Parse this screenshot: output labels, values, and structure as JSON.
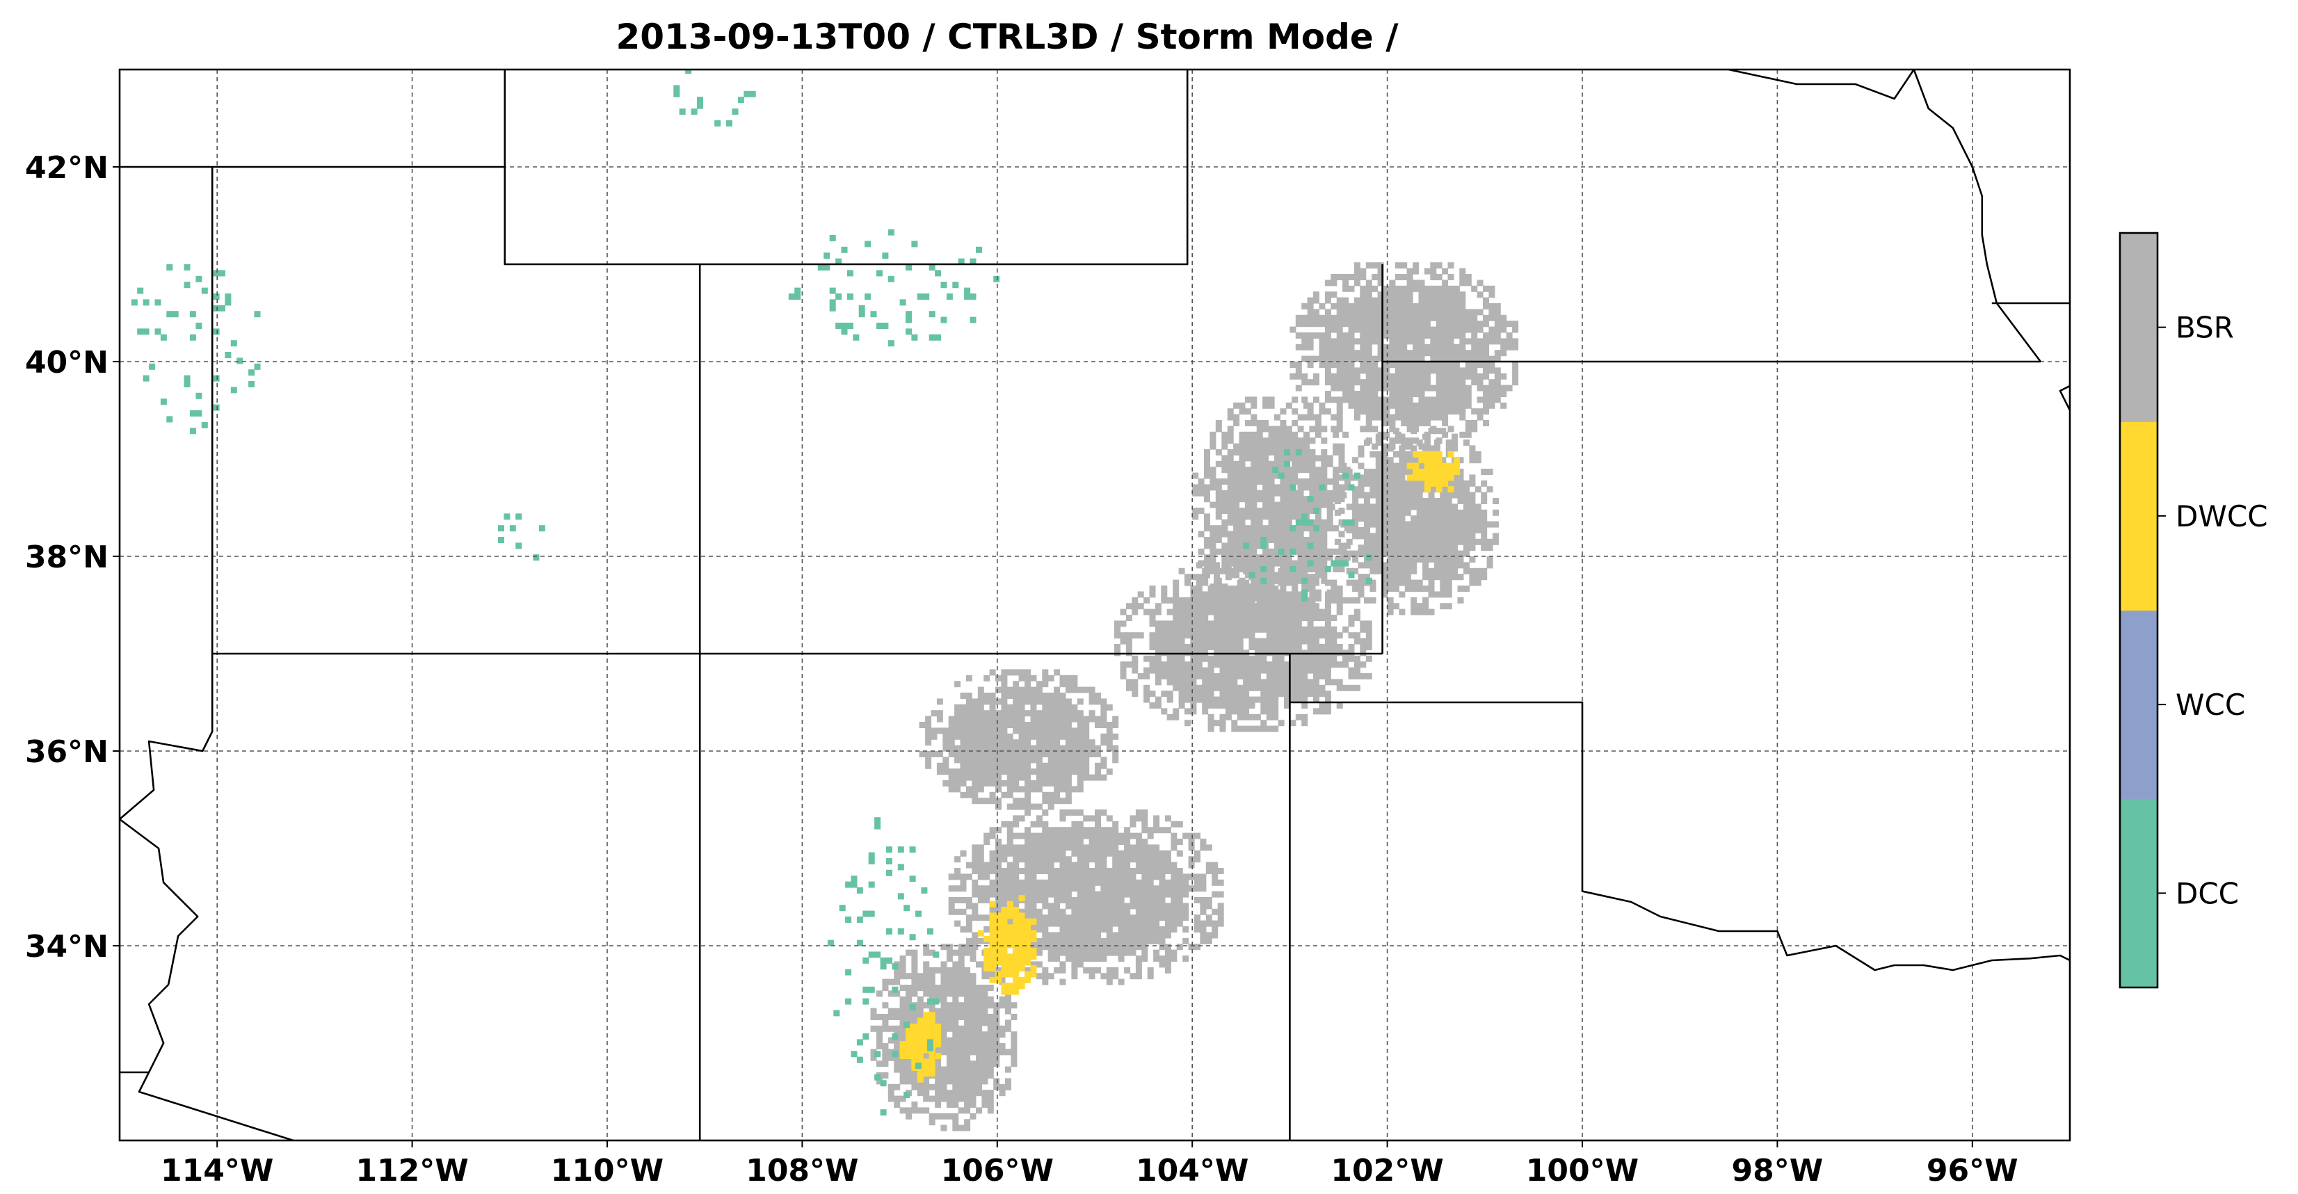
{
  "chart_data": {
    "type": "map",
    "title": "2013-09-13T00 / CTRL3D / Storm Mode /",
    "projection": "PlateCarree",
    "extent": {
      "lon": [
        -115,
        -95
      ],
      "lat": [
        32,
        43
      ]
    },
    "grid": true,
    "x_ticks": [
      {
        "value": -114,
        "label": "114°W"
      },
      {
        "value": -112,
        "label": "112°W"
      },
      {
        "value": -110,
        "label": "110°W"
      },
      {
        "value": -108,
        "label": "108°W"
      },
      {
        "value": -106,
        "label": "106°W"
      },
      {
        "value": -104,
        "label": "104°W"
      },
      {
        "value": -102,
        "label": "102°W"
      },
      {
        "value": -100,
        "label": "100°W"
      },
      {
        "value": -98,
        "label": "98°W"
      },
      {
        "value": -96,
        "label": "96°W"
      }
    ],
    "y_ticks": [
      {
        "value": 34,
        "label": "34°N"
      },
      {
        "value": 36,
        "label": "36°N"
      },
      {
        "value": 38,
        "label": "38°N"
      },
      {
        "value": 40,
        "label": "40°N"
      },
      {
        "value": 42,
        "label": "42°N"
      }
    ],
    "colorbar": {
      "placement": "right",
      "categories": [
        {
          "label": "DCC",
          "color": "#66c2a5"
        },
        {
          "label": "WCC",
          "color": "#8da0cb"
        },
        {
          "label": "DWCC",
          "color": "#ffd92f"
        },
        {
          "label": "BSR",
          "color": "#b3b3b3"
        }
      ]
    },
    "borders": [
      [
        [
          -115,
          42
        ],
        [
          -111.05,
          42
        ],
        [
          -111.05,
          43
        ]
      ],
      [
        [
          -114.05,
          42
        ],
        [
          -114.05,
          36.2
        ],
        [
          -114.15,
          36.0
        ],
        [
          -114.7,
          36.1
        ],
        [
          -114.65,
          35.6
        ],
        [
          -115,
          35.3
        ]
      ],
      [
        [
          -111.05,
          42
        ],
        [
          -111.05,
          41
        ],
        [
          -104.05,
          41
        ],
        [
          -104.05,
          43
        ]
      ],
      [
        [
          -109.05,
          41
        ],
        [
          -109.05,
          32
        ]
      ],
      [
        [
          -114.05,
          37
        ],
        [
          -102.05,
          37
        ]
      ],
      [
        [
          -102.05,
          41
        ],
        [
          -102.05,
          37
        ]
      ],
      [
        [
          -102.05,
          40
        ],
        [
          -95.3,
          40
        ]
      ],
      [
        [
          -103.0,
          37
        ],
        [
          -103.0,
          32
        ]
      ],
      [
        [
          -103.0,
          36.5
        ],
        [
          -100.0,
          36.5
        ],
        [
          -100.0,
          34.56
        ],
        [
          -99.5,
          34.45
        ],
        [
          -99.2,
          34.3
        ],
        [
          -98.6,
          34.15
        ],
        [
          -98.0,
          34.15
        ],
        [
          -97.9,
          33.9
        ],
        [
          -97.4,
          34.0
        ],
        [
          -97.0,
          33.75
        ],
        [
          -96.8,
          33.8
        ],
        [
          -96.5,
          33.8
        ],
        [
          -96.2,
          33.75
        ],
        [
          -95.8,
          33.85
        ],
        [
          -95.4,
          33.87
        ],
        [
          -95.1,
          33.9
        ],
        [
          -95,
          33.85
        ]
      ],
      [
        [
          -115,
          32.7
        ],
        [
          -114.7,
          32.7
        ],
        [
          -114.8,
          32.5
        ],
        [
          -111.1,
          31.33
        ],
        [
          -110,
          31.1
        ]
      ],
      [
        [
          -115,
          35.3
        ],
        [
          -114.6,
          35.0
        ],
        [
          -114.55,
          34.65
        ],
        [
          -114.2,
          34.3
        ],
        [
          -114.4,
          34.1
        ],
        [
          -114.5,
          33.6
        ],
        [
          -114.7,
          33.4
        ],
        [
          -114.55,
          33.0
        ],
        [
          -114.7,
          32.7
        ]
      ],
      [
        [
          -96.6,
          43
        ],
        [
          -96.45,
          42.6
        ],
        [
          -96.2,
          42.4
        ],
        [
          -96.0,
          42.0
        ],
        [
          -95.9,
          41.7
        ],
        [
          -95.9,
          41.3
        ],
        [
          -95.85,
          41.0
        ],
        [
          -95.75,
          40.6
        ],
        [
          -95.3,
          40.0
        ]
      ],
      [
        [
          -98.5,
          43
        ],
        [
          -97.8,
          42.85
        ],
        [
          -97.2,
          42.85
        ],
        [
          -96.8,
          42.7
        ],
        [
          -96.6,
          43
        ]
      ],
      [
        [
          -95,
          39.5
        ],
        [
          -95.1,
          39.7
        ],
        [
          -94.9,
          39.8
        ]
      ],
      [
        [
          -95.8,
          40.6
        ],
        [
          -95,
          40.6
        ]
      ]
    ],
    "regions": [
      {
        "category": "BSR",
        "lon": [
          -104.0,
          -102.4
        ],
        "lat": [
          37.3,
          39.6
        ]
      },
      {
        "category": "BSR",
        "lon": [
          -103.0,
          -100.7
        ],
        "lat": [
          39.1,
          41.0
        ]
      },
      {
        "category": "BSR",
        "lon": [
          -104.8,
          -102.2
        ],
        "lat": [
          36.2,
          37.9
        ]
      },
      {
        "category": "BSR",
        "lon": [
          -106.8,
          -104.8
        ],
        "lat": [
          35.4,
          36.8
        ]
      },
      {
        "category": "BSR",
        "lon": [
          -106.5,
          -103.7
        ],
        "lat": [
          33.6,
          35.4
        ]
      },
      {
        "category": "BSR",
        "lon": [
          -107.3,
          -105.8
        ],
        "lat": [
          32.1,
          34.0
        ]
      },
      {
        "category": "BSR",
        "lon": [
          -102.6,
          -100.9
        ],
        "lat": [
          37.4,
          39.3
        ]
      },
      {
        "category": "DWCC",
        "lon": [
          -106.2,
          -105.6
        ],
        "lat": [
          33.5,
          34.5
        ]
      },
      {
        "category": "DWCC",
        "lon": [
          -107.0,
          -106.6
        ],
        "lat": [
          32.6,
          33.3
        ]
      },
      {
        "category": "DWCC",
        "lon": [
          -101.8,
          -101.3
        ],
        "lat": [
          38.6,
          39.1
        ]
      },
      {
        "category": "DCC",
        "lon": [
          -115.0,
          -113.5
        ],
        "lat": [
          39.2,
          41.1
        ]
      },
      {
        "category": "DCC",
        "lon": [
          -111.3,
          -110.5
        ],
        "lat": [
          37.9,
          38.5
        ]
      },
      {
        "category": "DCC",
        "lon": [
          -108.2,
          -106.0
        ],
        "lat": [
          40.1,
          41.4
        ]
      },
      {
        "category": "DCC",
        "lon": [
          -103.6,
          -102.1
        ],
        "lat": [
          37.3,
          39.1
        ]
      },
      {
        "category": "DCC",
        "lon": [
          -107.8,
          -106.6
        ],
        "lat": [
          32.2,
          35.3
        ]
      },
      {
        "category": "DCC",
        "lon": [
          -109.5,
          -108.5
        ],
        "lat": [
          42.3,
          43.0
        ]
      }
    ]
  }
}
